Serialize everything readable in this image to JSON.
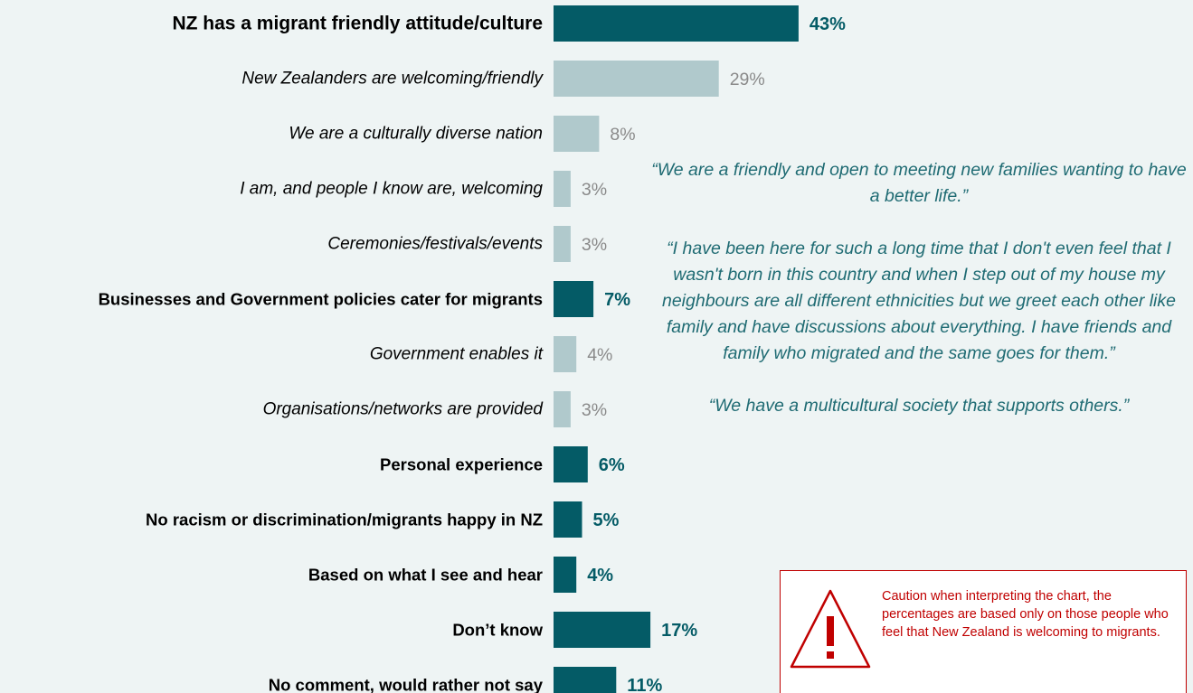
{
  "chart_data": {
    "type": "bar",
    "orientation": "horizontal",
    "categories": [
      "NZ has a migrant friendly attitude/culture",
      "New Zealanders are welcoming/friendly",
      "We are a culturally diverse nation",
      "I am, and people I know are, welcoming",
      "Ceremonies/festivals/events",
      "Businesses and Government policies cater for migrants",
      "Government enables it",
      "Organisations/networks are provided",
      "Personal experience",
      "No racism or discrimination/migrants happy in NZ",
      "Based on what I see and hear",
      "Don’t know",
      "No comment, would rather not say"
    ],
    "values": [
      43,
      29,
      8,
      3,
      3,
      7,
      4,
      3,
      6,
      5,
      4,
      17,
      11
    ],
    "value_labels": [
      "43%",
      "29%",
      "8%",
      "3%",
      "3%",
      "7%",
      "4%",
      "3%",
      "6%",
      "5%",
      "4%",
      "17%",
      "11%"
    ],
    "levels": [
      "main",
      "sub",
      "sub",
      "sub",
      "sub",
      "main",
      "sub",
      "sub",
      "main",
      "main",
      "main",
      "main",
      "main"
    ],
    "xlim": [
      0,
      50
    ],
    "title": "",
    "xlabel": "",
    "ylabel": "",
    "grid": false,
    "legend": "none",
    "colors": {
      "main_bar": "#045b66",
      "sub_bar": "#b0c9cc",
      "main_label": "#000000",
      "sub_label": "#000000",
      "main_value": "#045b66",
      "sub_value": "#8a8a8a"
    }
  },
  "quotes": [
    "“We are a friendly and open to meeting new families wanting to have a better life.”",
    "“I have been here for such a long time that I don't even feel that I wasn't born in this country and when I step out of my house my neighbours are all different ethnicities but we greet each other like family and have discussions about everything. I have friends and family who migrated and the same goes for them.”",
    "“We have a multicultural society that supports others.”"
  ],
  "caution": {
    "icon": "warning-triangle-icon",
    "text": "Caution when interpreting the chart, the percentages are based only on those people who feel that New Zealand is welcoming to migrants.",
    "color": "#c00000"
  }
}
